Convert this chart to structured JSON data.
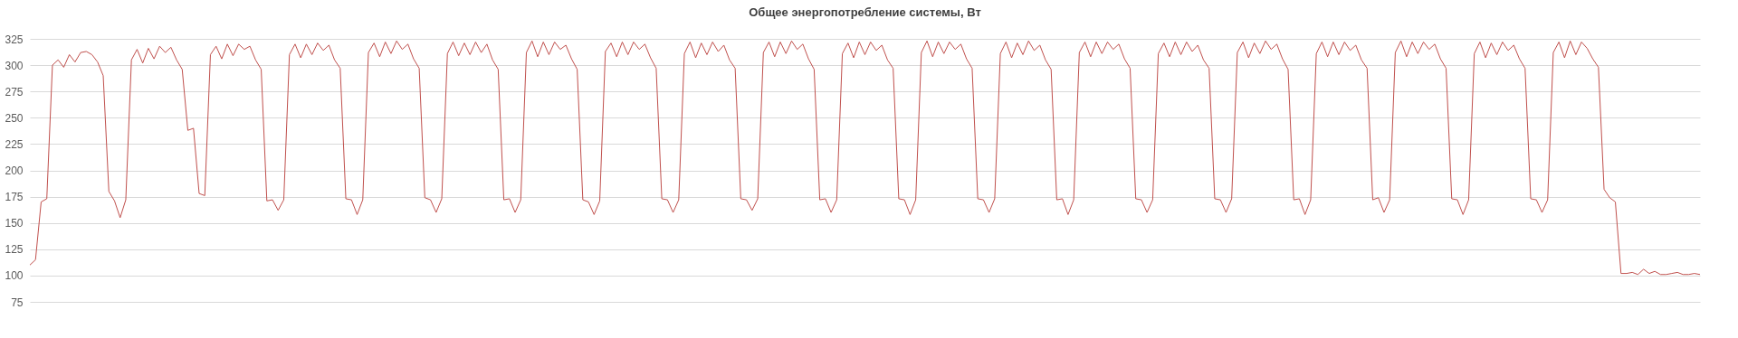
{
  "chart_data": {
    "type": "line",
    "title": "Общее энергопотребление системы, Вт",
    "categories": [
      null,
      null,
      null,
      null,
      null,
      null,
      null,
      null,
      null,
      null,
      null,
      null,
      null,
      null,
      null,
      null,
      null,
      null,
      null,
      null,
      null,
      null,
      null,
      null,
      null,
      null,
      null,
      null,
      null,
      null,
      null,
      null,
      null,
      null,
      null,
      null,
      null,
      null,
      null,
      null,
      null,
      null,
      null,
      null,
      null,
      null,
      null,
      null,
      null,
      null,
      null,
      null,
      null,
      null,
      null,
      null,
      null,
      null,
      null,
      null,
      null,
      null,
      null,
      null,
      null,
      null,
      null,
      null,
      null,
      null,
      null,
      null,
      null,
      null,
      null,
      null,
      null,
      null,
      null,
      null,
      null,
      null,
      null,
      null,
      null,
      null,
      null,
      null,
      null,
      null,
      null,
      null,
      null,
      null,
      null,
      null,
      null,
      null,
      null,
      null,
      null,
      null,
      null,
      null,
      null,
      null,
      null,
      null,
      null,
      null,
      null,
      null,
      null,
      null,
      null,
      null,
      null,
      null,
      null,
      null,
      null,
      null,
      null,
      null,
      null,
      null,
      null,
      null,
      null,
      null,
      null,
      null,
      null,
      null,
      null,
      null,
      null,
      null,
      null,
      null,
      null,
      null,
      null,
      null,
      null,
      null,
      null,
      null,
      null,
      null,
      null,
      null,
      null,
      null,
      null,
      null,
      null,
      null,
      null,
      null,
      null,
      null,
      null,
      null,
      null,
      null,
      null,
      null,
      null,
      null,
      null,
      null,
      null,
      null,
      null,
      null,
      null,
      null,
      null,
      null,
      null,
      null,
      null,
      null,
      null,
      null,
      null,
      null,
      null,
      null,
      null,
      null,
      null,
      null,
      null,
      null,
      null,
      null,
      null,
      null,
      null,
      null,
      null,
      null,
      null,
      null,
      null,
      null,
      null,
      null,
      null,
      null,
      null,
      null,
      null,
      null,
      null,
      null,
      null,
      null,
      null,
      null,
      null,
      null,
      null,
      null,
      null,
      null,
      null,
      null,
      null,
      null,
      null,
      null,
      null,
      null,
      null,
      null,
      null,
      null,
      null,
      null,
      null,
      null,
      null,
      null,
      null,
      null,
      null,
      null,
      null,
      null,
      null,
      null,
      null,
      null,
      null,
      null,
      null,
      null,
      null,
      null,
      null,
      null,
      null,
      null,
      null,
      null,
      null,
      null,
      null,
      null,
      null,
      null,
      null,
      null,
      null,
      null,
      null,
      null,
      null,
      null,
      null,
      null,
      null,
      null,
      null,
      null,
      null,
      null,
      null,
      null,
      null,
      null,
      null,
      null,
      null
    ],
    "series": [
      {
        "color": "#c0504d",
        "values": [
          110,
          115,
          170,
          173,
          300,
          305,
          298,
          310,
          303,
          312,
          313,
          310,
          303,
          290,
          180,
          171,
          155,
          172,
          305,
          315,
          302,
          316,
          306,
          318,
          312,
          317,
          305,
          296,
          238,
          240,
          178,
          176,
          310,
          318,
          306,
          320,
          309,
          320,
          315,
          318,
          305,
          296,
          171,
          172,
          162,
          172,
          310,
          320,
          307,
          320,
          310,
          321,
          314,
          319,
          305,
          297,
          173,
          172,
          158,
          172,
          312,
          321,
          308,
          322,
          311,
          323,
          315,
          320,
          306,
          297,
          174,
          172,
          160,
          173,
          311,
          322,
          309,
          321,
          310,
          322,
          312,
          320,
          305,
          296,
          172,
          173,
          160,
          172,
          312,
          323,
          308,
          322,
          310,
          322,
          315,
          319,
          306,
          296,
          172,
          170,
          158,
          171,
          313,
          321,
          308,
          322,
          310,
          322,
          315,
          320,
          307,
          297,
          173,
          172,
          160,
          172,
          311,
          322,
          307,
          321,
          310,
          322,
          313,
          319,
          305,
          297,
          173,
          172,
          162,
          173,
          312,
          322,
          308,
          322,
          311,
          323,
          315,
          320,
          306,
          296,
          172,
          173,
          160,
          172,
          311,
          321,
          307,
          322,
          310,
          322,
          314,
          319,
          305,
          297,
          173,
          172,
          158,
          172,
          312,
          323,
          308,
          322,
          311,
          322,
          315,
          320,
          306,
          297,
          173,
          172,
          160,
          173,
          311,
          322,
          307,
          321,
          310,
          323,
          314,
          319,
          305,
          296,
          172,
          173,
          158,
          172,
          312,
          322,
          308,
          322,
          311,
          322,
          315,
          320,
          306,
          297,
          173,
          172,
          160,
          172,
          311,
          321,
          308,
          322,
          310,
          322,
          313,
          319,
          305,
          297,
          173,
          172,
          160,
          173,
          312,
          322,
          307,
          321,
          311,
          323,
          315,
          320,
          306,
          296,
          172,
          173,
          158,
          172,
          311,
          322,
          308,
          322,
          310,
          322,
          314,
          319,
          305,
          297,
          172,
          174,
          160,
          172,
          312,
          323,
          308,
          322,
          311,
          322,
          315,
          320,
          306,
          297,
          173,
          172,
          158,
          172,
          311,
          322,
          307,
          321,
          310,
          322,
          314,
          319,
          306,
          297,
          173,
          172,
          160,
          172,
          312,
          322,
          307,
          323,
          310,
          322,
          316,
          306,
          298,
          182,
          174,
          170,
          102,
          102,
          103,
          101,
          106,
          102,
          104,
          101,
          101,
          102,
          103,
          101,
          101,
          102,
          101
        ]
      }
    ],
    "ylim": [
      75,
      325
    ],
    "yticks": [
      75,
      100,
      125,
      150,
      175,
      200,
      225,
      250,
      275,
      300,
      325
    ],
    "grid": "y",
    "tick_labels": "y"
  }
}
